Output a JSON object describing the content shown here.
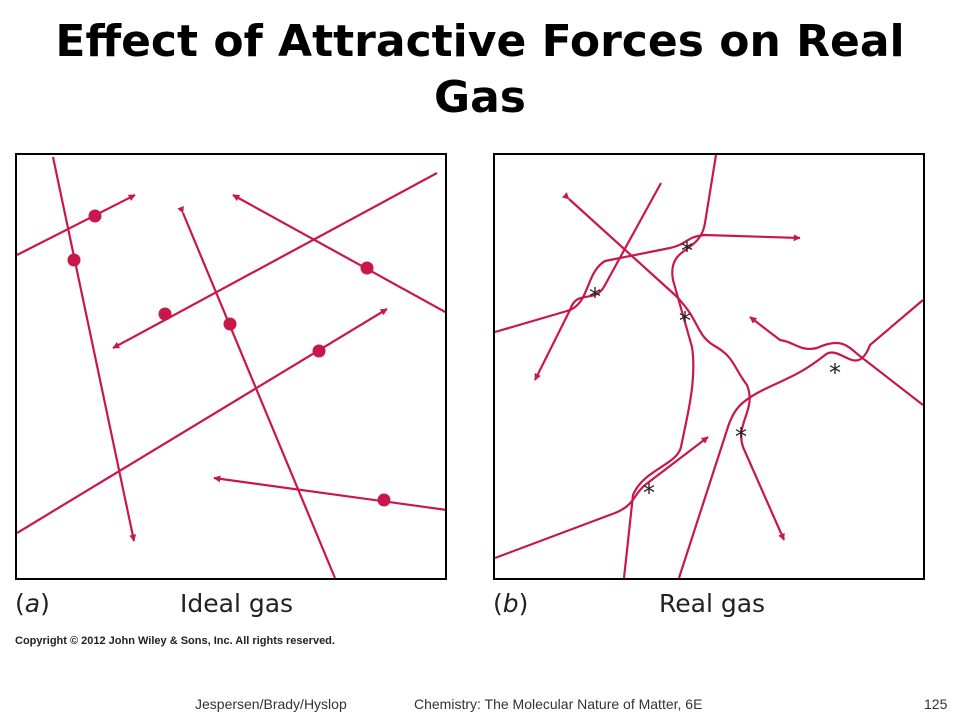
{
  "slide": {
    "title_line1": "Effect of Attractive Forces on Real",
    "title_line2": "Gas"
  },
  "panel_a": {
    "letter": "a",
    "caption": "Ideal gas"
  },
  "panel_b": {
    "letter": "b",
    "caption": "Real gas",
    "attraction_marker": "*"
  },
  "copyright": "Copyright © 2012 John Wiley & Sons, Inc. All rights reserved.",
  "footer": {
    "authors": "Jespersen/Brady/Hyslop",
    "book": "Chemistry: The Molecular Nature of Matter, 6E",
    "page_number": "125"
  },
  "colors": {
    "trajectory": "#c8174a",
    "frame": "#000000"
  }
}
